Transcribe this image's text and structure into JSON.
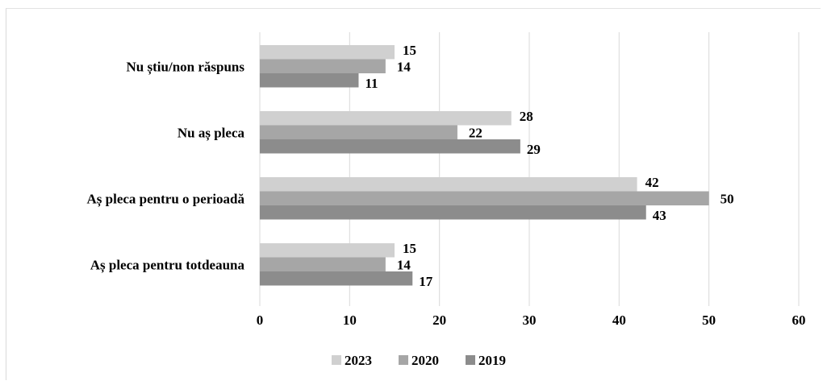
{
  "chart_data": {
    "type": "bar",
    "orientation": "horizontal",
    "title": "",
    "xlabel": "",
    "ylabel": "",
    "categories": [
      "Nu știu/non răspuns",
      "Nu aș pleca",
      "Aș pleca pentru o perioadă",
      "Aș pleca pentru totdeauna"
    ],
    "series": [
      {
        "name": "2023",
        "color": "#d0d0d0",
        "values": [
          15,
          28,
          42,
          15
        ]
      },
      {
        "name": "2020",
        "color": "#a6a6a6",
        "values": [
          14,
          22,
          50,
          14
        ]
      },
      {
        "name": "2019",
        "color": "#8c8c8c",
        "values": [
          11,
          29,
          43,
          17
        ]
      }
    ],
    "data_labels": [
      [
        "15",
        "28",
        "42",
        "15"
      ],
      [
        "14",
        "22",
        "50",
        "14"
      ],
      [
        "11",
        "29",
        "43",
        "17"
      ]
    ],
    "xlim": [
      0,
      60
    ],
    "x_ticks": [
      0,
      10,
      20,
      30,
      40,
      50,
      60
    ],
    "grid": "vertical",
    "legend_position": "bottom"
  }
}
